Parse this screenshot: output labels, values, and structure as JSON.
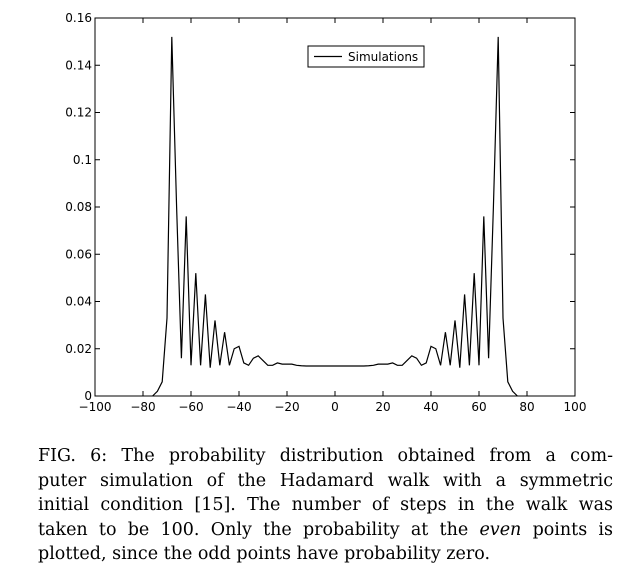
{
  "chart_data": {
    "type": "line",
    "xlim": [
      -100,
      100
    ],
    "ylim": [
      0,
      0.16
    ],
    "x_ticks": [
      "−100",
      "−80",
      "−60",
      "−40",
      "−20",
      "0",
      "20",
      "40",
      "60",
      "80",
      "100"
    ],
    "x_tick_values": [
      -100,
      -80,
      -60,
      -40,
      -20,
      0,
      20,
      40,
      60,
      80,
      100
    ],
    "y_ticks": [
      "0",
      "0.02",
      "0.04",
      "0.06",
      "0.08",
      "0.1",
      "0.12",
      "0.14",
      "0.16"
    ],
    "y_tick_values": [
      0,
      0.02,
      0.04,
      0.06,
      0.08,
      0.1,
      0.12,
      0.14,
      0.16
    ],
    "legend_position": "top-right",
    "grid": false,
    "series": [
      {
        "name": "Simulations",
        "color": "#000000",
        "x": [
          -76,
          -74,
          -72,
          -70,
          -68,
          -66,
          -64,
          -62,
          -60,
          -58,
          -56,
          -54,
          -52,
          -50,
          -48,
          -46,
          -44,
          -42,
          -40,
          -38,
          -36,
          -34,
          -32,
          -30,
          -28,
          -26,
          -24,
          -22,
          -20,
          -18,
          -16,
          -14,
          -12,
          -10,
          -8,
          -6,
          -4,
          -2,
          0,
          2,
          4,
          6,
          8,
          10,
          12,
          14,
          16,
          18,
          20,
          22,
          24,
          26,
          28,
          30,
          32,
          34,
          36,
          38,
          40,
          42,
          44,
          46,
          48,
          50,
          52,
          54,
          56,
          58,
          60,
          62,
          64,
          66,
          68,
          70,
          72,
          74,
          76
        ],
        "y": [
          0.0,
          0.002,
          0.006,
          0.033,
          0.152,
          0.08,
          0.016,
          0.076,
          0.013,
          0.052,
          0.013,
          0.043,
          0.012,
          0.032,
          0.013,
          0.027,
          0.013,
          0.02,
          0.021,
          0.014,
          0.013,
          0.016,
          0.017,
          0.015,
          0.013,
          0.013,
          0.014,
          0.0135,
          0.0135,
          0.0135,
          0.013,
          0.0128,
          0.0127,
          0.0127,
          0.0127,
          0.0127,
          0.0127,
          0.0127,
          0.0127,
          0.0127,
          0.0127,
          0.0127,
          0.0127,
          0.0127,
          0.0127,
          0.0128,
          0.013,
          0.0135,
          0.0135,
          0.0135,
          0.014,
          0.013,
          0.013,
          0.015,
          0.017,
          0.016,
          0.013,
          0.014,
          0.021,
          0.02,
          0.013,
          0.027,
          0.013,
          0.032,
          0.012,
          0.043,
          0.013,
          0.052,
          0.013,
          0.076,
          0.016,
          0.08,
          0.152,
          0.033,
          0.006,
          0.002,
          0.0
        ]
      }
    ]
  },
  "caption": {
    "lines": [
      "FIG. 6: The probability distribution obtained from a com-",
      "puter simulation of the Hadamard walk with a symmetric",
      "initial condition [15]. The number of steps in the walk was",
      "taken to be 100. Only the probability at the ",
      "plotted, since the odd points have probability zero."
    ],
    "emphasis": "even",
    "line4_tail": " points is"
  }
}
